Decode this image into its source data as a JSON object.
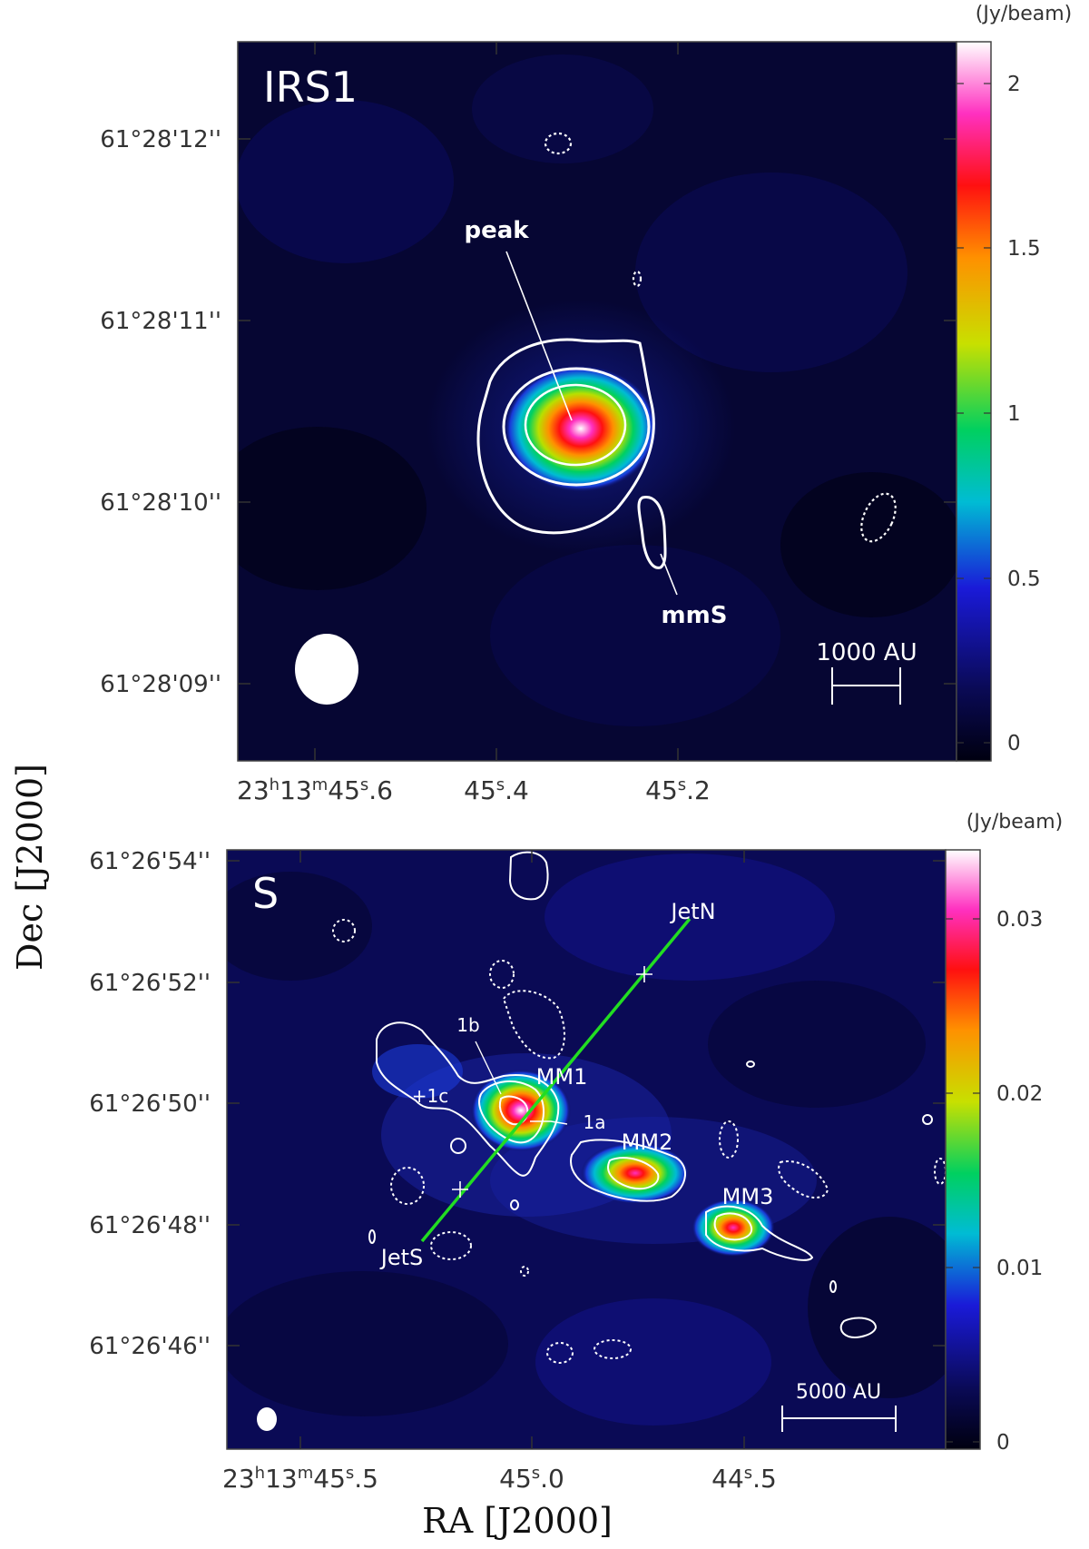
{
  "figure": {
    "ylabel": "Dec [J2000]",
    "xlabel": "RA [J2000]"
  },
  "colors": {
    "contour": "#ffffff",
    "jet_line": "#22dd22",
    "background_low": "#000010",
    "colormap": [
      "#000010",
      "#0a0a55",
      "#1a1ad8",
      "#00bcd4",
      "#00d060",
      "#c8e000",
      "#ff9000",
      "#ff1010",
      "#ff30c0",
      "#ffffff"
    ]
  },
  "chart_data": [
    {
      "type": "heatmap",
      "panel_label": "IRS1",
      "colorbar_unit": "(Jy/beam)",
      "colorbar_range": [
        0,
        2.15
      ],
      "colorbar_ticks": [
        "2",
        "1.5",
        "1",
        "0.5",
        "0"
      ],
      "yticks": [
        "61°28'12''",
        "61°28'11''",
        "61°28'10''",
        "61°28'09''"
      ],
      "xticks": [
        {
          "h": "23",
          "hs": "h",
          "m": "13",
          "ms": "m",
          "s": "45",
          "ss": "s",
          "f": ".6"
        },
        {
          "h": "",
          "hs": "",
          "m": "",
          "ms": "",
          "s": "45",
          "ss": "s",
          "f": ".4"
        },
        {
          "h": "",
          "hs": "",
          "m": "",
          "ms": "",
          "s": "45",
          "ss": "s",
          "f": ".2"
        }
      ],
      "sources": [
        {
          "name": "peak",
          "peak_jy_per_beam": 2.1
        },
        {
          "name": "mmS",
          "peak_jy_per_beam": 0.2
        }
      ],
      "scale_bar": "1000 AU"
    },
    {
      "type": "heatmap",
      "panel_label": "S",
      "colorbar_unit": "(Jy/beam)",
      "colorbar_range": [
        0,
        0.034
      ],
      "colorbar_ticks": [
        "0.03",
        "0.02",
        "0.01",
        "0"
      ],
      "yticks": [
        "61°26'54''",
        "61°26'52''",
        "61°26'50''",
        "61°26'48''",
        "61°26'46''"
      ],
      "xticks": [
        {
          "h": "23",
          "hs": "h",
          "m": "13",
          "ms": "m",
          "s": "45",
          "ss": "s",
          "f": ".5"
        },
        {
          "h": "",
          "hs": "",
          "m": "",
          "ms": "",
          "s": "45",
          "ss": "s",
          "f": ".0"
        },
        {
          "h": "",
          "hs": "",
          "m": "",
          "ms": "",
          "s": "44",
          "ss": "s",
          "f": ".5"
        }
      ],
      "sources": [
        {
          "name": "MM1",
          "peak_jy_per_beam": 0.033
        },
        {
          "name": "MM2",
          "peak_jy_per_beam": 0.026
        },
        {
          "name": "MM3",
          "peak_jy_per_beam": 0.024
        }
      ],
      "labels": [
        "1a",
        "1b",
        "+1c",
        "JetN",
        "JetS"
      ],
      "scale_bar": "5000 AU"
    }
  ]
}
